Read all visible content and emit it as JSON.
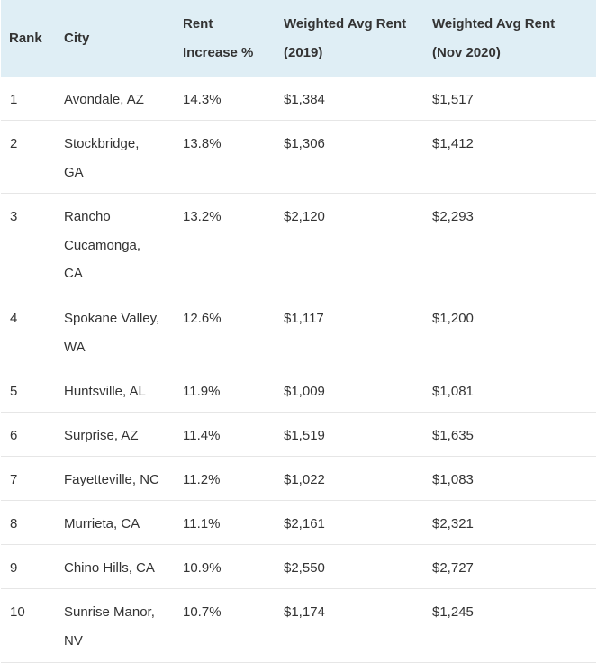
{
  "table": {
    "headers": {
      "rank": "Rank",
      "city": "City",
      "increase_line1": "Rent",
      "increase_line2": "Increase %",
      "rent2019_line1": "Weighted Avg Rent",
      "rent2019_line2": "(2019)",
      "rent2020_line1": "Weighted Avg Rent",
      "rent2020_line2": "(Nov 2020)"
    },
    "rows": [
      {
        "rank": "1",
        "city": "Avondale, AZ",
        "increase": "14.3%",
        "rent_2019": "$1,384",
        "rent_2020": "$1,517"
      },
      {
        "rank": "2",
        "city": "Stockbridge, GA",
        "increase": "13.8%",
        "rent_2019": "$1,306",
        "rent_2020": "$1,412"
      },
      {
        "rank": "3",
        "city": "Rancho Cucamonga, CA",
        "increase": "13.2%",
        "rent_2019": "$2,120",
        "rent_2020": "$2,293"
      },
      {
        "rank": "4",
        "city": "Spokane Valley, WA",
        "increase": "12.6%",
        "rent_2019": "$1,117",
        "rent_2020": "$1,200"
      },
      {
        "rank": "5",
        "city": "Huntsville, AL",
        "increase": "11.9%",
        "rent_2019": "$1,009",
        "rent_2020": "$1,081"
      },
      {
        "rank": "6",
        "city": "Surprise, AZ",
        "increase": "11.4%",
        "rent_2019": "$1,519",
        "rent_2020": "$1,635"
      },
      {
        "rank": "7",
        "city": "Fayetteville, NC",
        "increase": "11.2%",
        "rent_2019": "$1,022",
        "rent_2020": "$1,083"
      },
      {
        "rank": "8",
        "city": "Murrieta, CA",
        "increase": "11.1%",
        "rent_2019": "$2,161",
        "rent_2020": "$2,321"
      },
      {
        "rank": "9",
        "city": "Chino Hills, CA",
        "increase": "10.9%",
        "rent_2019": "$2,550",
        "rent_2020": "$2,727"
      },
      {
        "rank": "10",
        "city": "Sunrise Manor, NV",
        "increase": "10.7%",
        "rent_2019": "$1,174",
        "rent_2020": "$1,245"
      }
    ]
  }
}
